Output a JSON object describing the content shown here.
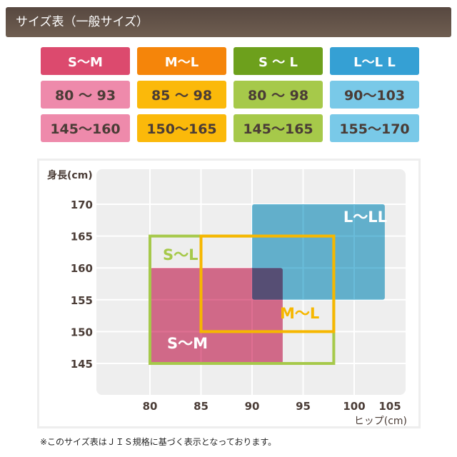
{
  "header": {
    "title": "サイズ表（一般サイズ）"
  },
  "size_table": [
    {
      "size": "S～M",
      "hip": "80 ～ 93",
      "height": "145～160",
      "colors": {
        "header": "#dc4a6e",
        "cell": "#ee8aab"
      }
    },
    {
      "size": "M～L",
      "hip": "85 ～ 98",
      "height": "150～165",
      "colors": {
        "header": "#f5850a",
        "cell": "#fbb90a"
      }
    },
    {
      "size": "S ～ L",
      "hip": "80 ～ 98",
      "height": "145～165",
      "colors": {
        "header": "#6da01c",
        "cell": "#a6c94a"
      }
    },
    {
      "size": "L～L L",
      "hip": "90～103",
      "height": "155～170",
      "colors": {
        "header": "#35a0d4",
        "cell": "#79c9e8"
      }
    }
  ],
  "chart_data": {
    "type": "area",
    "ylabel": "身長(cm)",
    "xlabel": "ヒップ(cm)",
    "x_ticks": [
      "80",
      "85",
      "90",
      "95",
      "100",
      "105"
    ],
    "y_ticks": [
      "170",
      "165",
      "160",
      "155",
      "150",
      "145"
    ],
    "xlim": [
      75,
      105
    ],
    "ylim": [
      140,
      175
    ],
    "grid": true,
    "series": [
      {
        "name": "S～M",
        "hip": [
          80,
          93
        ],
        "height": [
          145,
          160
        ],
        "style": "filled",
        "color": "#d9577f"
      },
      {
        "name": "L～LL",
        "hip": [
          90,
          103
        ],
        "height": [
          155,
          170
        ],
        "style": "filled",
        "color": "#4fb0d4"
      },
      {
        "name": "S～L",
        "hip": [
          80,
          98
        ],
        "height": [
          145,
          165
        ],
        "style": "outline",
        "color": "#a6c94a"
      },
      {
        "name": "M～L",
        "hip": [
          85,
          98
        ],
        "height": [
          150,
          165
        ],
        "style": "outline",
        "color": "#f6b700"
      }
    ]
  },
  "footnote": "※このサイズ表はＪＩＳ規格に基づく表示となっております。"
}
